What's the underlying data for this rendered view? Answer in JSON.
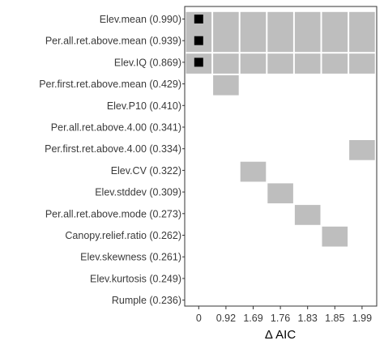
{
  "chart_data": {
    "type": "heatmap",
    "title": "",
    "xlabel": "Δ AIC",
    "ylabel": "",
    "grid": false,
    "legend": "none",
    "colors": {
      "included": "#bebebe",
      "best_model": "#000000",
      "border": "#333333",
      "background": "#ffffff"
    },
    "x_categories": [
      "0",
      "0.92",
      "1.69",
      "1.76",
      "1.83",
      "1.85",
      "1.99"
    ],
    "rows": [
      {
        "label": "Elev.mean (0.990)",
        "cells": [
          1,
          1,
          1,
          1,
          1,
          1,
          1
        ]
      },
      {
        "label": "Per.all.ret.above.mean (0.939)",
        "cells": [
          1,
          1,
          1,
          1,
          1,
          1,
          1
        ]
      },
      {
        "label": "Elev.IQ (0.869)",
        "cells": [
          1,
          1,
          1,
          1,
          1,
          1,
          1
        ]
      },
      {
        "label": "Per.first.ret.above.mean (0.429)",
        "cells": [
          0,
          1,
          0,
          0,
          0,
          0,
          0
        ]
      },
      {
        "label": "Elev.P10 (0.410)",
        "cells": [
          0,
          0,
          0,
          0,
          0,
          0,
          0
        ]
      },
      {
        "label": "Per.all.ret.above.4.00 (0.341)",
        "cells": [
          0,
          0,
          0,
          0,
          0,
          0,
          0
        ]
      },
      {
        "label": "Per.first.ret.above.4.00 (0.334)",
        "cells": [
          0,
          0,
          0,
          0,
          0,
          0,
          1
        ]
      },
      {
        "label": "Elev.CV (0.322)",
        "cells": [
          0,
          0,
          1,
          0,
          0,
          0,
          0
        ]
      },
      {
        "label": "Elev.stddev (0.309)",
        "cells": [
          0,
          0,
          0,
          1,
          0,
          0,
          0
        ]
      },
      {
        "label": "Per.all.ret.above.mode (0.273)",
        "cells": [
          0,
          0,
          0,
          0,
          1,
          0,
          0
        ]
      },
      {
        "label": "Canopy.relief.ratio (0.262)",
        "cells": [
          0,
          0,
          0,
          0,
          0,
          1,
          0
        ]
      },
      {
        "label": "Elev.skewness (0.261)",
        "cells": [
          0,
          0,
          0,
          0,
          0,
          0,
          0
        ]
      },
      {
        "label": "Elev.kurtosis (0.249)",
        "cells": [
          0,
          0,
          0,
          0,
          0,
          0,
          0
        ]
      },
      {
        "label": "Rumple (0.236)",
        "cells": [
          0,
          0,
          0,
          0,
          0,
          0,
          0
        ]
      }
    ],
    "best_model_column": 0
  }
}
